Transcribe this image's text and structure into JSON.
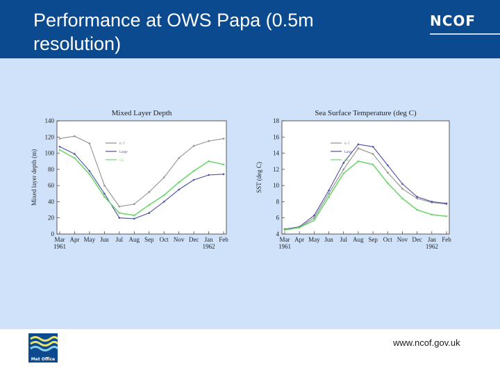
{
  "slide": {
    "title": "Performance at OWS Papa (0.5m resolution)",
    "brand": "NCOF",
    "url": "www.ncof.gov.uk",
    "logo_text": "Met Office",
    "colors": {
      "header": "#0b4a8e",
      "panel": "#cfe2fa"
    }
  },
  "chart_data": [
    {
      "type": "line",
      "title": "Mixed Layer Depth",
      "xlabel": "",
      "ylabel": "Mixed layer depth (m)",
      "ylim": [
        0,
        140
      ],
      "yticks": [
        "0",
        "20",
        "40",
        "60",
        "80",
        "100",
        "120",
        "140"
      ],
      "x_ticks": [
        "Mar",
        "Apr",
        "May",
        "Jun",
        "Jul",
        "Aug",
        "Sep",
        "Oct",
        "Nov",
        "Dec",
        "Jan",
        "Feb"
      ],
      "year_labels": [
        {
          "label": "1961",
          "at": "Mar"
        },
        {
          "label": "1962",
          "at": "Jan"
        }
      ],
      "legend": [
        "K-T",
        "Large",
        "GL"
      ],
      "series": [
        {
          "name": "K-T",
          "color": "#909090",
          "values": [
            118,
            121,
            112,
            60,
            34,
            37,
            52,
            70,
            94,
            109,
            115,
            118
          ]
        },
        {
          "name": "Large",
          "color": "#4a4fa0",
          "values": [
            108,
            99,
            78,
            50,
            20,
            19,
            26,
            40,
            55,
            67,
            73,
            74
          ]
        },
        {
          "name": "GL",
          "color": "#6fd66f",
          "values": [
            104,
            94,
            74,
            46,
            26,
            23,
            36,
            48,
            64,
            78,
            90,
            86
          ]
        }
      ]
    },
    {
      "type": "line",
      "title": "Sea Surface Temperature (deg C)",
      "xlabel": "",
      "ylabel": "SST (deg C)",
      "ylim": [
        4,
        18
      ],
      "yticks": [
        "4",
        "6",
        "8",
        "10",
        "12",
        "14",
        "16",
        "18"
      ],
      "x_ticks": [
        "Mar",
        "Apr",
        "May",
        "Jun",
        "Jul",
        "Aug",
        "Sep",
        "Oct",
        "Nov",
        "Dec",
        "Jan",
        "Feb"
      ],
      "year_labels": [
        {
          "label": "1961",
          "at": "Mar"
        },
        {
          "label": "1962",
          "at": "Jan"
        }
      ],
      "legend": [
        "K-T",
        "Large",
        "Obs"
      ],
      "series": [
        {
          "name": "K-T",
          "color": "#909090",
          "values": [
            4.6,
            4.8,
            6.0,
            9.0,
            12.0,
            14.6,
            13.9,
            11.6,
            9.6,
            8.4,
            7.9,
            7.7
          ]
        },
        {
          "name": "Large",
          "color": "#4a4fa0",
          "values": [
            4.6,
            4.9,
            6.3,
            9.4,
            12.8,
            15.1,
            14.8,
            12.5,
            10.2,
            8.6,
            8.0,
            7.8
          ]
        },
        {
          "name": "Obs",
          "color": "#6fd66f",
          "values": [
            4.5,
            4.8,
            5.7,
            8.6,
            11.5,
            13.0,
            12.6,
            10.3,
            8.4,
            7.0,
            6.4,
            6.2
          ]
        }
      ]
    }
  ]
}
